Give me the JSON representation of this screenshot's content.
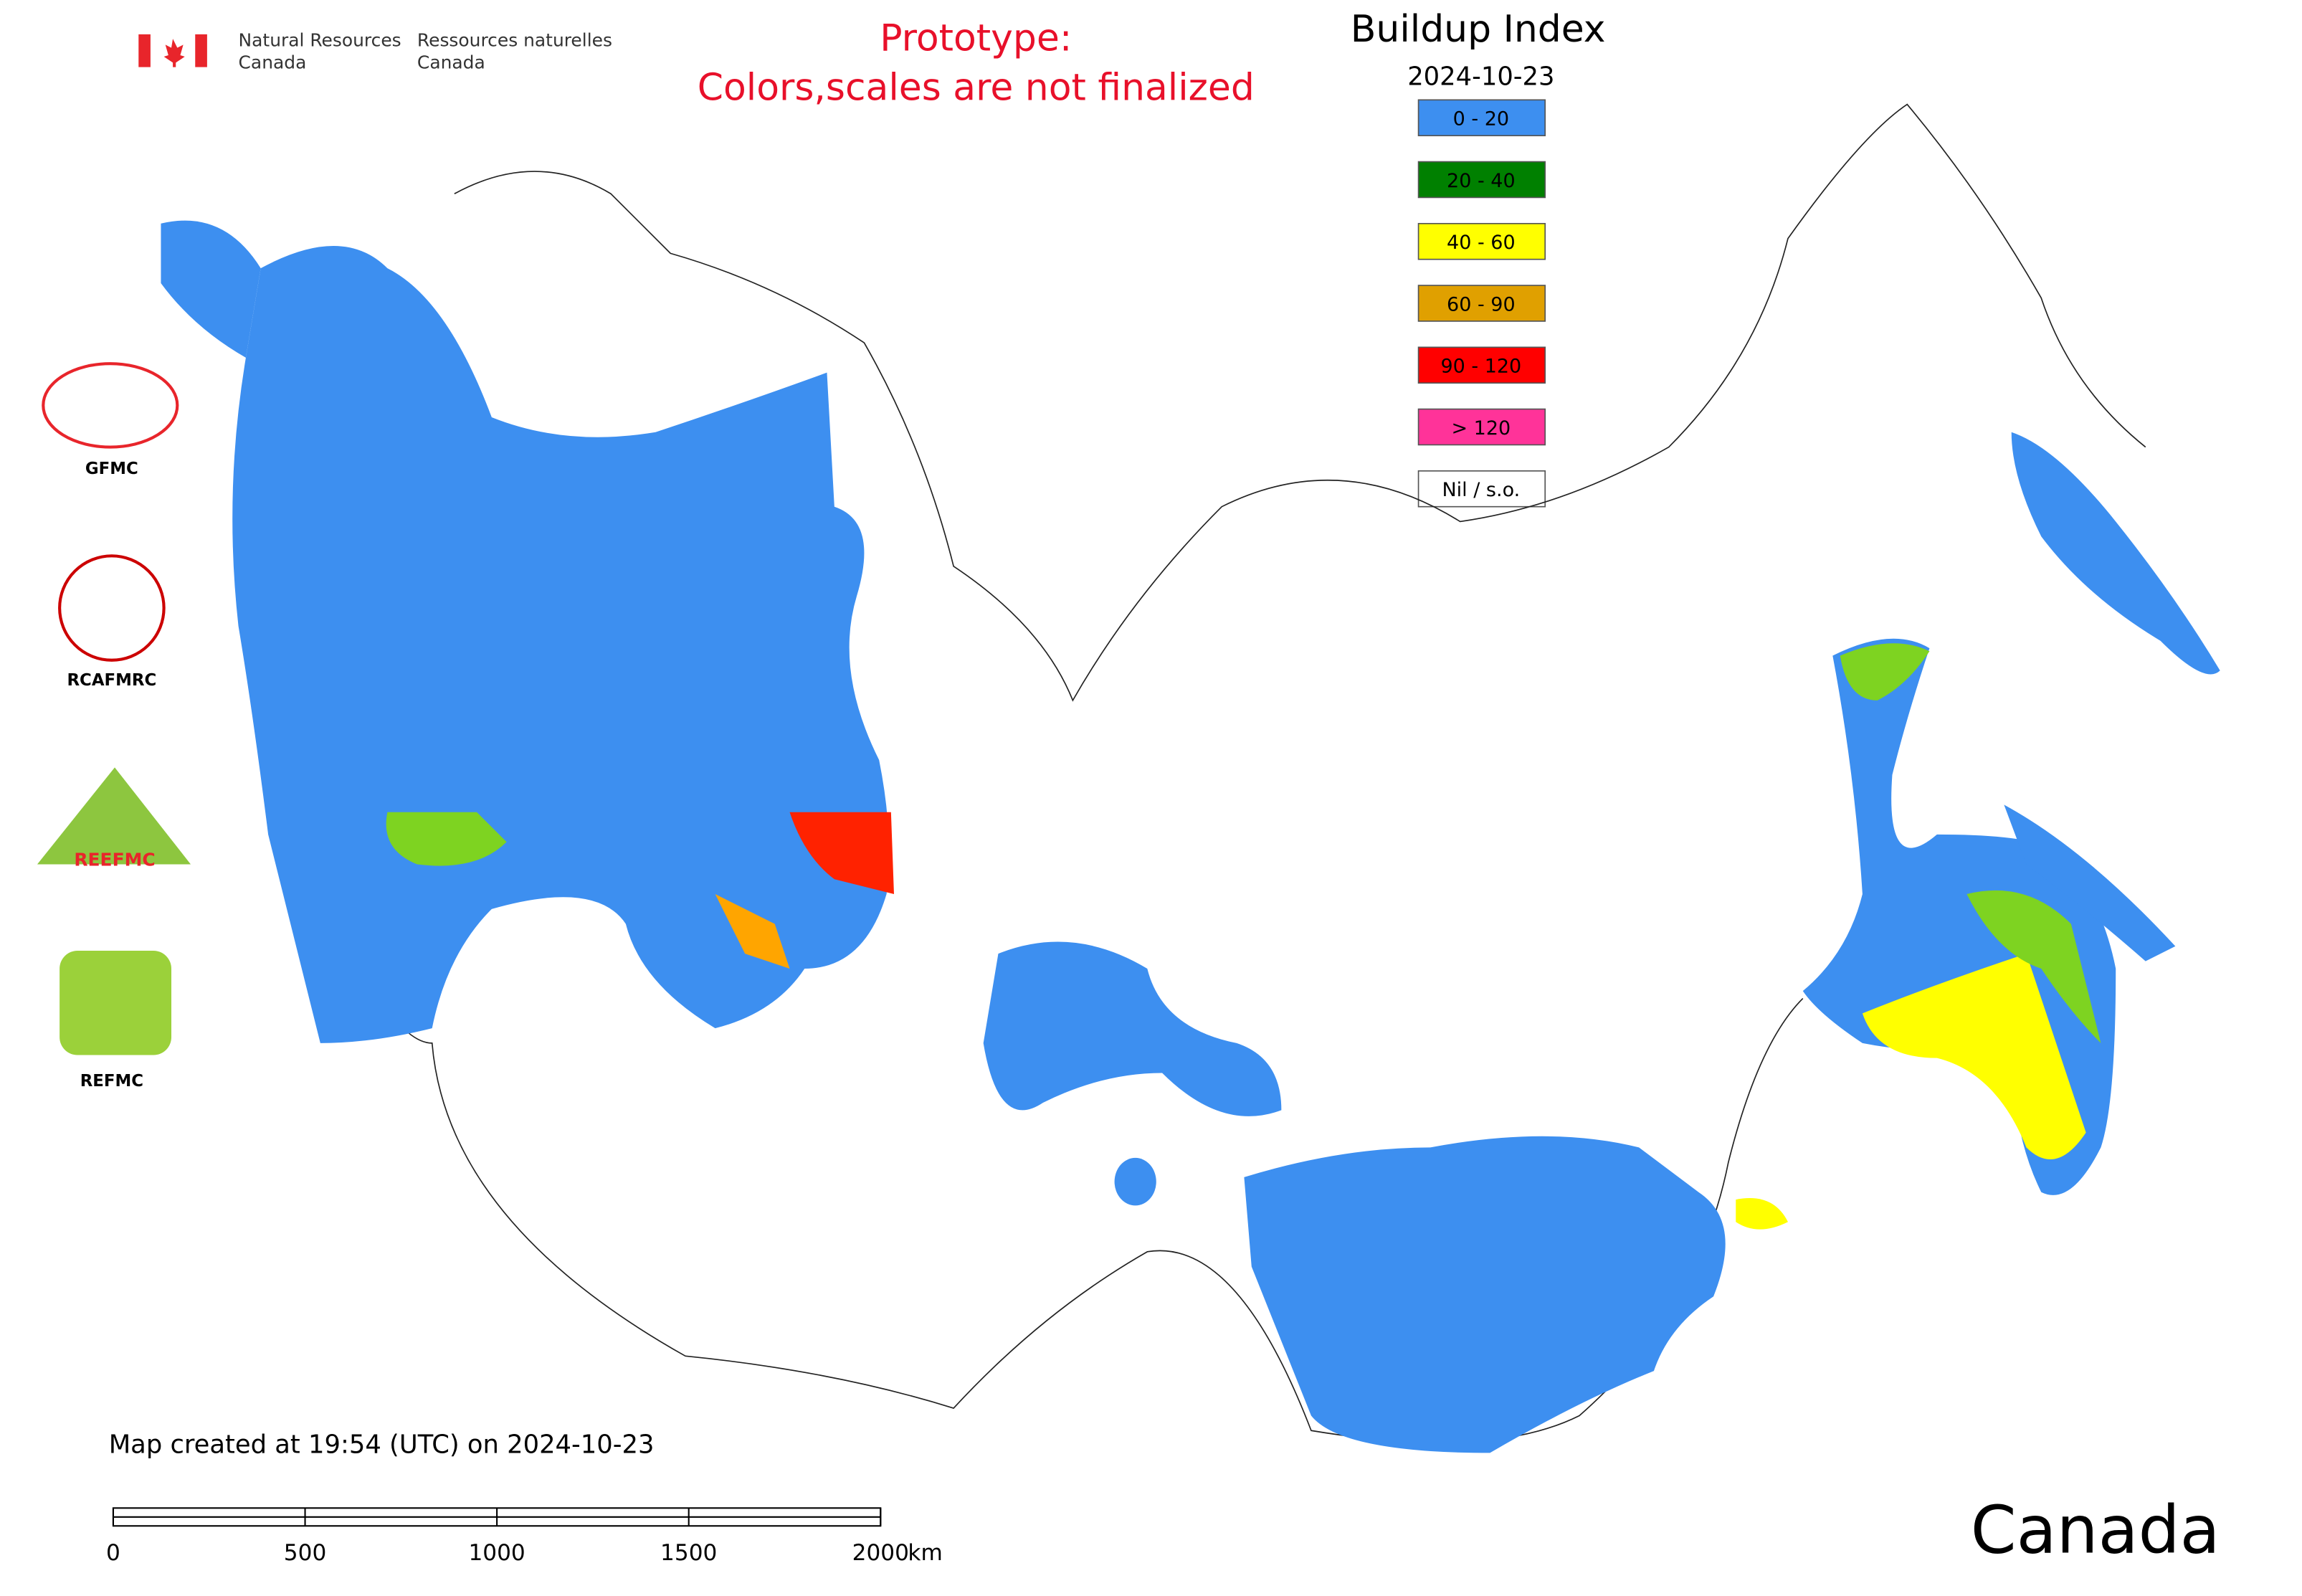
{
  "header": {
    "department_en": "Natural Resources",
    "country_en": "Canada",
    "department_fr": "Ressources naturelles",
    "country_fr": "Canada"
  },
  "notice": {
    "line1": "Prototype:",
    "line2": "Colors,scales are not finalized"
  },
  "legend": {
    "title": "Buildup Index",
    "date": "2024-10-23",
    "items": [
      {
        "label": "0 - 20",
        "color": "#3d8ff0"
      },
      {
        "label": "20 - 40",
        "color": "#008000"
      },
      {
        "label": "40 - 60",
        "color": "#ffff00"
      },
      {
        "label": "60 - 90",
        "color": "#e0a000"
      },
      {
        "label": "90 - 120",
        "color": "#ff0000"
      },
      {
        "label": "> 120",
        "color": "#ff3399"
      },
      {
        "label": "Nil / s.o.",
        "color": "#ffffff"
      }
    ]
  },
  "logos": [
    "GFMC",
    "RCAFMRC",
    "REEFMC",
    "REFMC"
  ],
  "footer": {
    "created": "Map created at 19:54 (UTC) on 2024-10-23",
    "wordmark": "Canada"
  },
  "scale_bar": {
    "ticks": [
      0,
      500,
      1000,
      1500,
      2000
    ],
    "unit": "km"
  }
}
